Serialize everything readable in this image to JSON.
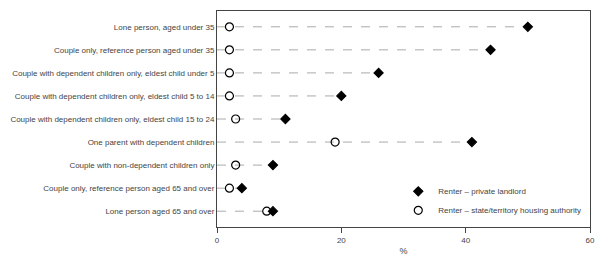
{
  "chart_data": {
    "type": "dot",
    "categories": [
      "Lone person, aged under 35",
      "Couple only, reference person aged under 35",
      "Couple with dependent children only, eldest child under 5",
      "Couple with dependent children only, eldest child 5 to 14",
      "Couple with dependent children only, eldest child 15 to 24",
      "One parent with dependent children",
      "Couple with non-dependent children only",
      "Couple only, reference person aged 65 and over",
      "Lone person aged 65 and over"
    ],
    "series": [
      {
        "name": "Renter – private landlord",
        "color": "black",
        "marker": "diamond",
        "line_style": "dashed",
        "values": [
          50,
          44,
          26,
          20,
          11,
          41,
          9,
          4,
          9
        ]
      },
      {
        "name": "Renter – state/territory housing authority",
        "color": "black",
        "marker": "circle-open",
        "values": [
          2,
          2,
          2,
          2,
          3,
          19,
          3,
          2,
          8
        ]
      }
    ],
    "xlim": [
      0,
      60
    ],
    "xticks": [
      0,
      20,
      40,
      60
    ],
    "xlabel": "%",
    "legend": "lower right",
    "grid": false
  }
}
